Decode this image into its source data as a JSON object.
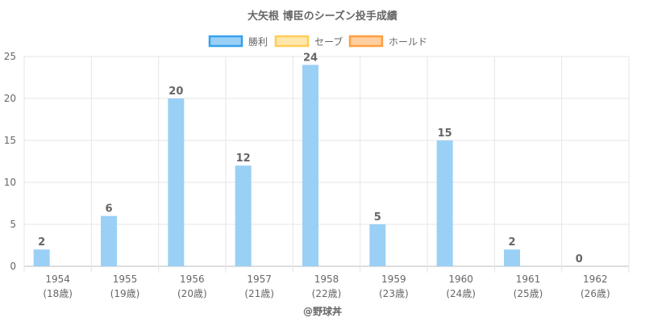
{
  "chart_data": {
    "type": "bar",
    "title": "大矢根 博臣のシーズン投手成績",
    "categories": [
      "1954",
      "1955",
      "1956",
      "1957",
      "1958",
      "1959",
      "1960",
      "1961",
      "1962"
    ],
    "age_labels": [
      "(18歳)",
      "(19歳)",
      "(20歳)",
      "(21歳)",
      "(22歳)",
      "(23歳)",
      "(24歳)",
      "(25歳)",
      "(26歳)"
    ],
    "series": [
      {
        "name": "勝利",
        "values": [
          2,
          6,
          20,
          12,
          24,
          5,
          15,
          2,
          0
        ],
        "color": "#36a2eb",
        "fill": "#9ad0f5"
      },
      {
        "name": "セーブ",
        "values": [
          0,
          0,
          0,
          0,
          0,
          0,
          0,
          0,
          0
        ],
        "color": "#ffcd56",
        "fill": "#ffe6aa"
      },
      {
        "name": "ホールド",
        "values": [
          0,
          0,
          0,
          0,
          0,
          0,
          0,
          0,
          0
        ],
        "color": "#ff9f40",
        "fill": "#ffcf9f"
      }
    ],
    "data_labels": [
      "2",
      "6",
      "20",
      "12",
      "24",
      "5",
      "15",
      "2",
      "0"
    ],
    "ylim": [
      0,
      25
    ],
    "yticks": [
      "0",
      "5",
      "10",
      "15",
      "20",
      "25"
    ],
    "grid": true,
    "legend_position": "top-center",
    "credit": "@野球丼"
  }
}
